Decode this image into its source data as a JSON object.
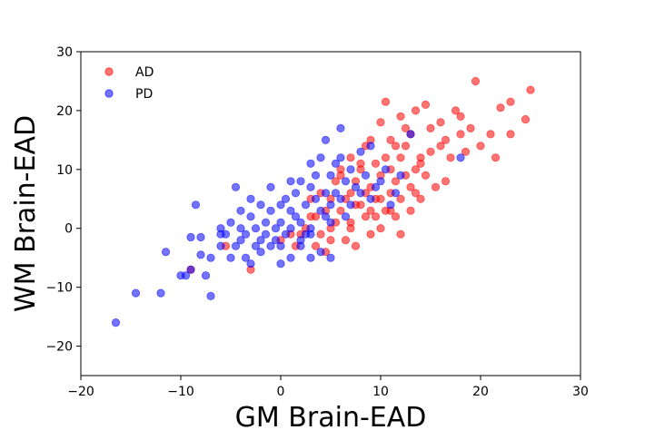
{
  "chart_data": {
    "type": "scatter",
    "title": "",
    "xlabel": "GM Brain-EAD",
    "ylabel": "WM Brain-EAD",
    "xlim": [
      -20,
      30
    ],
    "ylim": [
      -25,
      30
    ],
    "xticks": [
      -20,
      -10,
      0,
      10,
      20,
      30
    ],
    "yticks": [
      -20,
      -10,
      0,
      10,
      20,
      30
    ],
    "grid": false,
    "legend_position": "top-left",
    "series": [
      {
        "name": "AD",
        "color": "#ff0000",
        "points": [
          [
            -9,
            -7
          ],
          [
            -5.5,
            -3
          ],
          [
            -3,
            -7
          ],
          [
            0,
            -2
          ],
          [
            1.5,
            -3
          ],
          [
            2.5,
            0
          ],
          [
            3,
            2
          ],
          [
            3.5,
            -3
          ],
          [
            4,
            -1
          ],
          [
            4.5,
            3
          ],
          [
            5,
            0
          ],
          [
            5,
            5
          ],
          [
            5.5,
            8
          ],
          [
            6,
            10
          ],
          [
            6,
            3
          ],
          [
            6.5,
            -2
          ],
          [
            7,
            0
          ],
          [
            7,
            6
          ],
          [
            7,
            12
          ],
          [
            7.5,
            -3
          ],
          [
            7.5,
            8
          ],
          [
            8,
            4
          ],
          [
            8,
            10
          ],
          [
            8.5,
            2
          ],
          [
            8.5,
            14
          ],
          [
            9,
            -1
          ],
          [
            9,
            7
          ],
          [
            9,
            15
          ],
          [
            9.5,
            2
          ],
          [
            9.5,
            11
          ],
          [
            10,
            5
          ],
          [
            10,
            9
          ],
          [
            10,
            18
          ],
          [
            10.5,
            3
          ],
          [
            10.5,
            12
          ],
          [
            10.5,
            21.5
          ],
          [
            11,
            6
          ],
          [
            11,
            10
          ],
          [
            11,
            15
          ],
          [
            11.5,
            2
          ],
          [
            11.5,
            8
          ],
          [
            12,
            5
          ],
          [
            12,
            12
          ],
          [
            12,
            19
          ],
          [
            12.5,
            9
          ],
          [
            12.5,
            14
          ],
          [
            13,
            3
          ],
          [
            13,
            7
          ],
          [
            13,
            16
          ],
          [
            13.5,
            10
          ],
          [
            13.5,
            20
          ],
          [
            14,
            5
          ],
          [
            14,
            12
          ],
          [
            14.5,
            9
          ],
          [
            14.5,
            21
          ],
          [
            15,
            17
          ],
          [
            15.5,
            7
          ],
          [
            16,
            14
          ],
          [
            16,
            18
          ],
          [
            16.5,
            8
          ],
          [
            17,
            12
          ],
          [
            17.5,
            20
          ],
          [
            18,
            16
          ],
          [
            18.5,
            13
          ],
          [
            19,
            17
          ],
          [
            19.5,
            25
          ],
          [
            21,
            16
          ],
          [
            21.5,
            12
          ],
          [
            22,
            20.5
          ],
          [
            23,
            21.5
          ],
          [
            23,
            16
          ],
          [
            24.5,
            18.5
          ],
          [
            25,
            23.5
          ],
          [
            2,
            -1
          ],
          [
            4,
            6
          ],
          [
            6,
            9
          ],
          [
            8,
            11
          ],
          [
            11.5,
            14
          ],
          [
            12.5,
            17
          ],
          [
            9.5,
            5
          ],
          [
            6.5,
            5
          ],
          [
            3.5,
            2
          ],
          [
            5,
            -2
          ],
          [
            7.5,
            4
          ],
          [
            10,
            0
          ],
          [
            12,
            -1
          ],
          [
            14,
            11
          ],
          [
            15,
            13
          ],
          [
            16.5,
            15
          ],
          [
            18,
            19
          ],
          [
            20,
            14
          ],
          [
            3,
            5
          ],
          [
            1,
            -1
          ],
          [
            8.5,
            6
          ],
          [
            11,
            3
          ],
          [
            13.5,
            6
          ],
          [
            9,
            3
          ],
          [
            7,
            1
          ],
          [
            5.5,
            1
          ],
          [
            4.5,
            -4
          ]
        ]
      },
      {
        "name": "PD",
        "color": "#0000ff",
        "points": [
          [
            -16.5,
            -16
          ],
          [
            -14.5,
            -11
          ],
          [
            -12,
            -11
          ],
          [
            -11.5,
            -4
          ],
          [
            -9.5,
            -8
          ],
          [
            -9,
            -7
          ],
          [
            -9,
            -1.5
          ],
          [
            -8.5,
            4
          ],
          [
            -8,
            -4.5
          ],
          [
            -8,
            -1.5
          ],
          [
            -7.5,
            -8
          ],
          [
            -7,
            -11.5
          ],
          [
            -7,
            -5
          ],
          [
            -6,
            0
          ],
          [
            -6,
            -3
          ],
          [
            -5.5,
            -1
          ],
          [
            -5,
            -5
          ],
          [
            -5,
            1
          ],
          [
            -4.5,
            -3
          ],
          [
            -4.5,
            7
          ],
          [
            -4,
            0
          ],
          [
            -4,
            3
          ],
          [
            -3.5,
            -1
          ],
          [
            -3.5,
            -5
          ],
          [
            -3,
            -6
          ],
          [
            -3,
            2
          ],
          [
            -3,
            5
          ],
          [
            -2.5,
            0
          ],
          [
            -2.5,
            -3
          ],
          [
            -2,
            -2
          ],
          [
            -2,
            4
          ],
          [
            -1.5,
            -1
          ],
          [
            -1.5,
            1
          ],
          [
            -1,
            -3
          ],
          [
            -1,
            7
          ],
          [
            -1,
            3
          ],
          [
            -0.5,
            0
          ],
          [
            -0.5,
            -2
          ],
          [
            0,
            4
          ],
          [
            0,
            -3
          ],
          [
            0,
            1
          ],
          [
            0.5,
            -1
          ],
          [
            0.5,
            5
          ],
          [
            1,
            0
          ],
          [
            1,
            -5
          ],
          [
            1,
            3
          ],
          [
            1.5,
            2
          ],
          [
            1.5,
            6
          ],
          [
            2,
            1
          ],
          [
            2,
            -2
          ],
          [
            2,
            8
          ],
          [
            2.5,
            4
          ],
          [
            2.5,
            -1
          ],
          [
            3,
            0
          ],
          [
            3,
            7
          ],
          [
            3,
            11
          ],
          [
            3.5,
            5
          ],
          [
            3.5,
            9
          ],
          [
            4,
            3
          ],
          [
            4,
            -4
          ],
          [
            4,
            12
          ],
          [
            4.5,
            2
          ],
          [
            4.5,
            6
          ],
          [
            4.5,
            15
          ],
          [
            5,
            1
          ],
          [
            5,
            4
          ],
          [
            5,
            -5
          ],
          [
            5.5,
            6
          ],
          [
            5.5,
            11
          ],
          [
            6,
            17
          ],
          [
            6,
            5
          ],
          [
            6.5,
            8
          ],
          [
            6.5,
            2
          ],
          [
            7,
            4
          ],
          [
            7,
            10
          ],
          [
            7.5,
            7
          ],
          [
            8,
            6
          ],
          [
            8,
            13
          ],
          [
            8.5,
            9
          ],
          [
            9,
            14
          ],
          [
            9,
            5
          ],
          [
            9.5,
            7
          ],
          [
            10,
            8
          ],
          [
            10.5,
            10
          ],
          [
            11,
            4
          ],
          [
            11.5,
            6
          ],
          [
            12,
            9
          ],
          [
            13,
            16
          ],
          [
            18,
            12
          ],
          [
            -2,
            -4
          ],
          [
            0,
            -6
          ],
          [
            2,
            -3
          ],
          [
            3,
            -5
          ],
          [
            -4,
            -2
          ],
          [
            1,
            8
          ],
          [
            3,
            -1
          ],
          [
            5,
            9
          ],
          [
            -6,
            -1
          ],
          [
            -10,
            -8
          ],
          [
            6,
            12
          ]
        ]
      }
    ]
  }
}
